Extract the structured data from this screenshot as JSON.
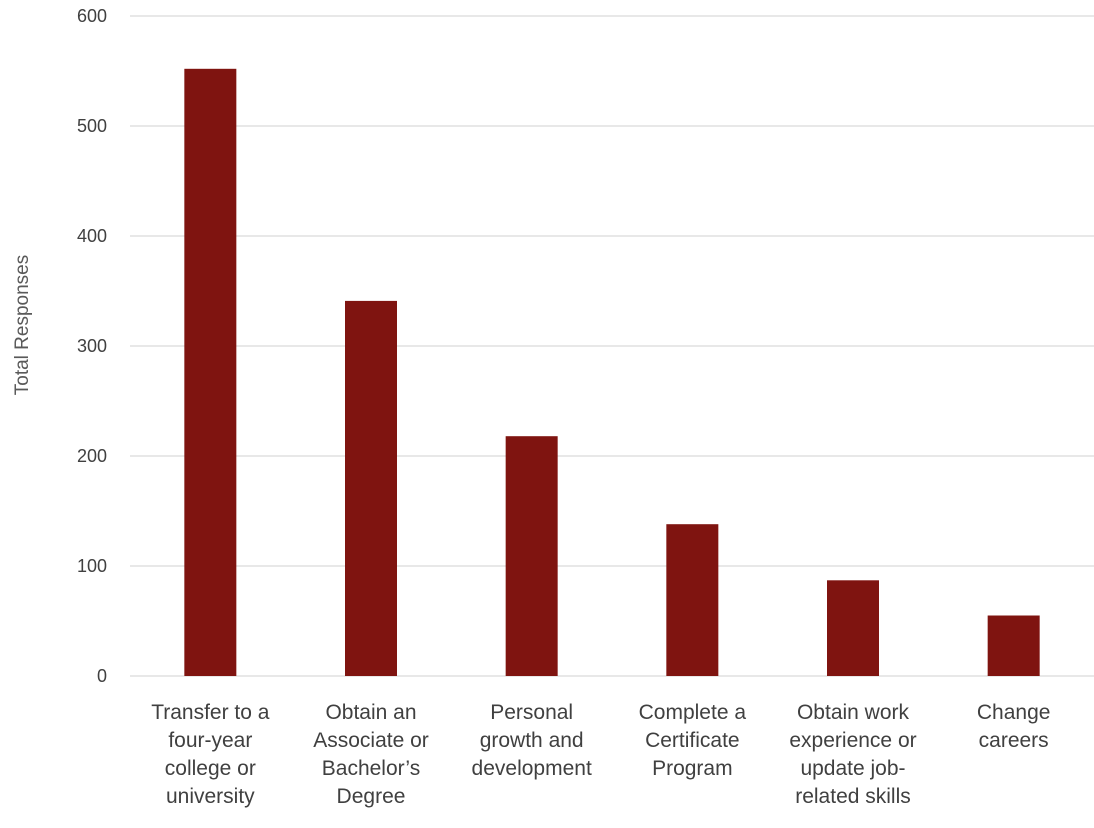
{
  "chart_data": {
    "type": "bar",
    "title": "",
    "xlabel": "",
    "ylabel": "Total Responses",
    "ylim": [
      0,
      600
    ],
    "yticks": [
      0,
      100,
      200,
      300,
      400,
      500,
      600
    ],
    "grid": true,
    "legend": "none",
    "bar_color": "#7f1410",
    "categories": [
      [
        "Transfer to a",
        "four-year",
        "college or",
        "university"
      ],
      [
        "Obtain an",
        "Associate or",
        "Bachelor’s",
        "Degree"
      ],
      [
        "Personal",
        "growth and",
        "development"
      ],
      [
        "Complete a",
        "Certificate",
        "Program"
      ],
      [
        "Obtain work",
        "experience or",
        "update job-",
        "related skills"
      ],
      [
        "Change",
        "careers"
      ]
    ],
    "values": [
      552,
      341,
      218,
      138,
      87,
      55
    ]
  }
}
